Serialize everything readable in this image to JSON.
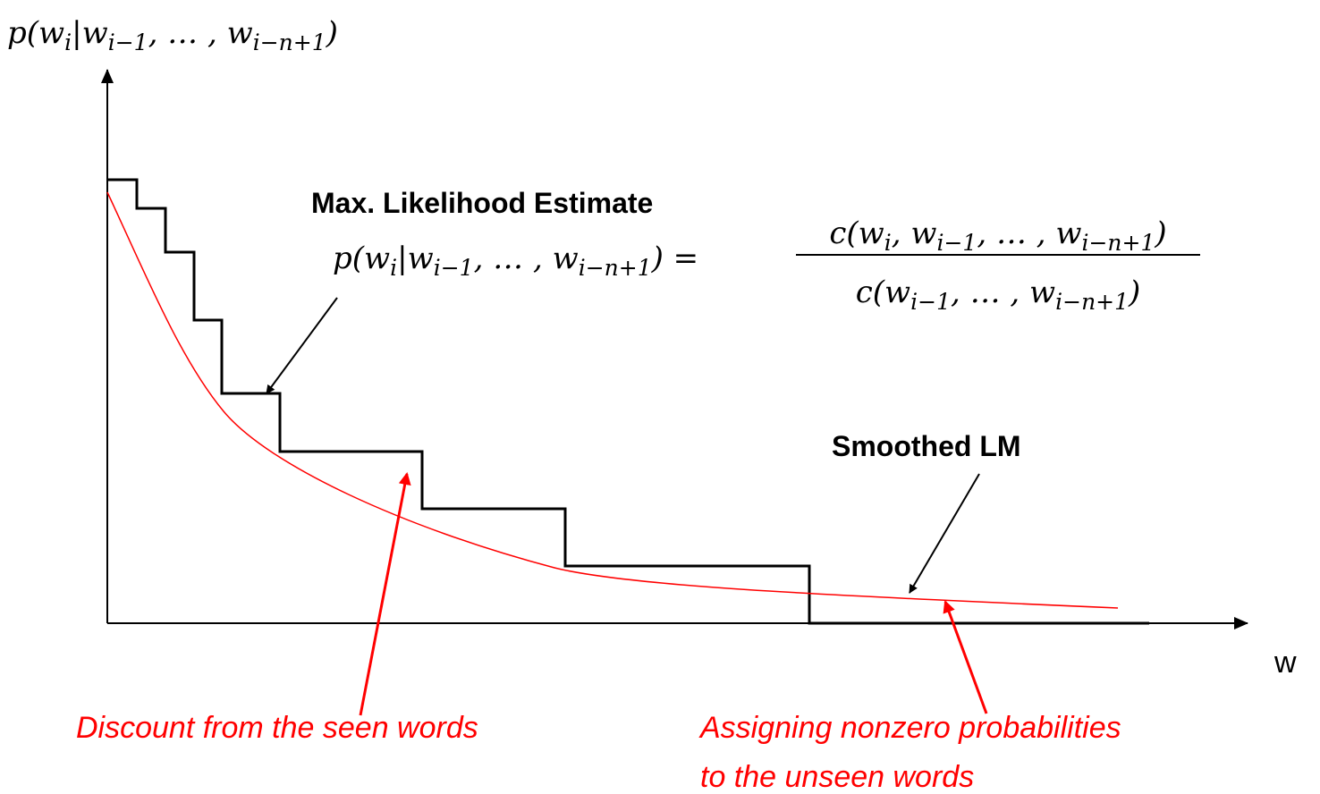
{
  "y_axis_label": [
    {
      "text": "p(w"
    },
    {
      "sub": "i"
    },
    {
      "text": "|w"
    },
    {
      "sub": "i−1"
    },
    {
      "text": ", … , w"
    },
    {
      "sub": "i−n+1"
    },
    {
      "text": ")"
    }
  ],
  "x_axis_label": "w",
  "mle_label": "Max. Likelihood Estimate",
  "mle_formula": {
    "lhs": [
      {
        "text": "p(w"
      },
      {
        "sub": "i"
      },
      {
        "text": "|w"
      },
      {
        "sub": "i−1"
      },
      {
        "text": ", … , w"
      },
      {
        "sub": "i−n+1"
      },
      {
        "text": ") ="
      }
    ],
    "numerator": [
      {
        "text": "c(w"
      },
      {
        "sub": "i"
      },
      {
        "text": ", w"
      },
      {
        "sub": "i−1"
      },
      {
        "text": ", … , w"
      },
      {
        "sub": "i−n+1"
      },
      {
        "text": ")"
      }
    ],
    "denominator": [
      {
        "text": "c(w"
      },
      {
        "sub": "i−1"
      },
      {
        "text": ", … , w"
      },
      {
        "sub": "i−n+1"
      },
      {
        "text": ")"
      }
    ]
  },
  "smoothed_label": "Smoothed LM",
  "annotations": [
    "Discount from the seen words",
    "Assigning nonzero probabilities",
    "to the unseen words"
  ]
}
